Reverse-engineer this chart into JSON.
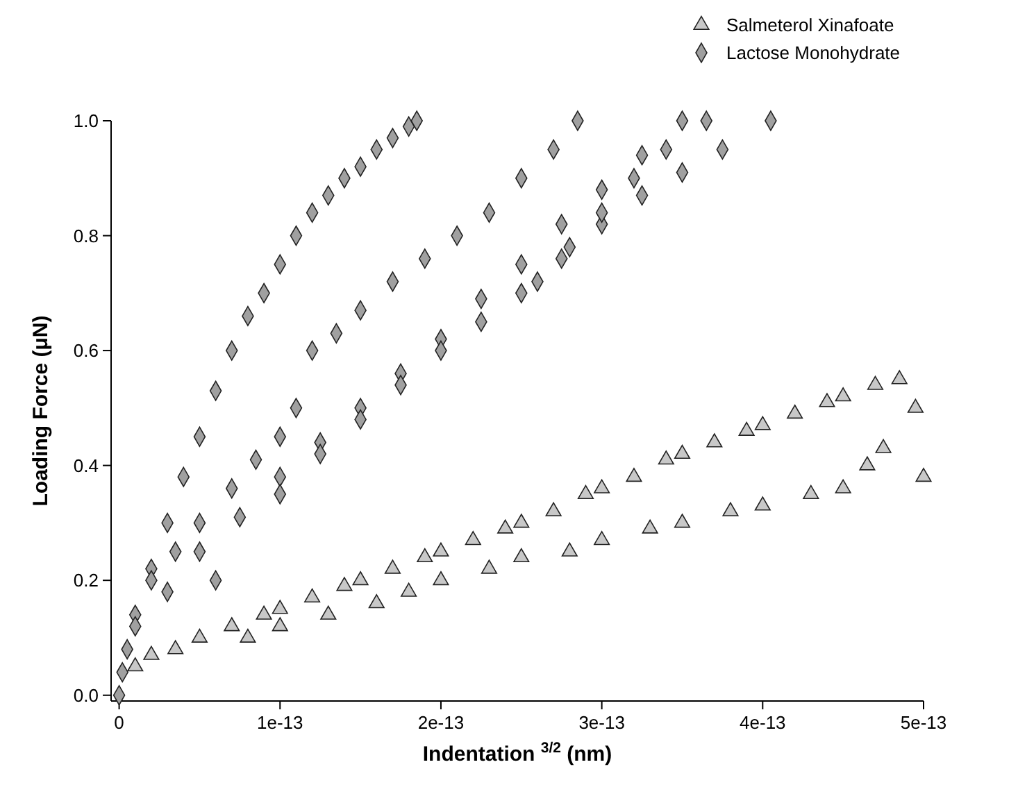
{
  "chart_data": {
    "type": "scatter",
    "xlabel": "Indentation $^{3/2}$ (nm)",
    "ylabel": "Loading Force (μN)",
    "xlim": [
      -5e-15,
      5e-13
    ],
    "ylim": [
      -0.01,
      1.0
    ],
    "xticks": [
      0,
      1e-13,
      2e-13,
      3e-13,
      4e-13,
      5e-13
    ],
    "yticks": [
      {
        "value": 0,
        "label": "0.0"
      },
      {
        "value": 0.2,
        "label": "0.2"
      },
      {
        "value": 0.4,
        "label": "0.4"
      },
      {
        "value": 0.6,
        "label": "0.6"
      },
      {
        "value": 0.8,
        "label": "0.8"
      },
      {
        "value": 1.0,
        "label": "1.0"
      }
    ],
    "grid": false,
    "legend": "top right",
    "series": [
      {
        "name": "Salmeterol Xinafoate",
        "color": "#c8c8c8",
        "marker": "triangle",
        "x": [
          1e-14,
          2e-14,
          3.5e-14,
          5e-14,
          7e-14,
          9e-14,
          1e-13,
          1.2e-13,
          1.4e-13,
          1.5e-13,
          1.7e-13,
          1.9e-13,
          2e-13,
          2.2e-13,
          2.4e-13,
          2.5e-13,
          2.7e-13,
          2.9e-13,
          3e-13,
          3.2e-13,
          3.4e-13,
          3.5e-13,
          3.7e-13,
          3.9e-13,
          4e-13,
          4.2e-13,
          4.4e-13,
          4.5e-13,
          4.7e-13,
          4.85e-13,
          8e-14,
          1e-13,
          1.3e-13,
          1.6e-13,
          1.8e-13,
          2e-13,
          2.3e-13,
          2.5e-13,
          2.8e-13,
          3e-13,
          3.3e-13,
          3.5e-13,
          3.8e-13,
          4e-13,
          4.3e-13,
          4.5e-13,
          4.65e-13,
          4.75e-13,
          5e-13,
          4.95e-13
        ],
        "values": [
          0.05,
          0.07,
          0.08,
          0.1,
          0.12,
          0.14,
          0.15,
          0.17,
          0.19,
          0.2,
          0.22,
          0.24,
          0.25,
          0.27,
          0.29,
          0.3,
          0.32,
          0.35,
          0.36,
          0.38,
          0.41,
          0.42,
          0.44,
          0.46,
          0.47,
          0.49,
          0.51,
          0.52,
          0.54,
          0.55,
          0.1,
          0.12,
          0.14,
          0.16,
          0.18,
          0.2,
          0.22,
          0.24,
          0.25,
          0.27,
          0.29,
          0.3,
          0.32,
          0.33,
          0.35,
          0.36,
          0.4,
          0.43,
          0.38,
          0.5
        ]
      },
      {
        "name": "Lactose Monohydrate",
        "color": "#a0a0a0",
        "marker": "diamond",
        "x": [
          0,
          2e-15,
          5e-15,
          1e-14,
          2e-14,
          3e-14,
          4e-14,
          5e-14,
          6e-14,
          7e-14,
          8e-14,
          9e-14,
          1e-13,
          1.1e-13,
          1.2e-13,
          1.3e-13,
          1.4e-13,
          1.5e-13,
          1.6e-13,
          1.7e-13,
          1.8e-13,
          1.85e-13,
          1e-14,
          2e-14,
          3.5e-14,
          5e-14,
          7e-14,
          8.5e-14,
          1e-13,
          1.1e-13,
          1.2e-13,
          1.35e-13,
          1.5e-13,
          1.7e-13,
          1.9e-13,
          2.1e-13,
          2.3e-13,
          2.5e-13,
          2.7e-13,
          2.85e-13,
          3e-14,
          5e-14,
          7.5e-14,
          1e-13,
          1.25e-13,
          1.5e-13,
          1.75e-13,
          2e-13,
          2.25e-13,
          2.5e-13,
          2.75e-13,
          3e-13,
          3.25e-13,
          3.5e-13,
          6e-14,
          1e-13,
          1.25e-13,
          1.5e-13,
          1.75e-13,
          2e-13,
          2.25e-13,
          2.5e-13,
          2.75e-13,
          3e-13,
          3.25e-13,
          3.5e-13,
          3.75e-13,
          4.05e-13,
          2.6e-13,
          2.8e-13,
          3e-13,
          3.2e-13,
          3.4e-13,
          3.65e-13
        ],
        "values": [
          0,
          0.04,
          0.08,
          0.14,
          0.22,
          0.3,
          0.38,
          0.45,
          0.53,
          0.6,
          0.66,
          0.7,
          0.75,
          0.8,
          0.84,
          0.87,
          0.9,
          0.92,
          0.95,
          0.97,
          0.99,
          1.0,
          0.12,
          0.2,
          0.25,
          0.3,
          0.36,
          0.41,
          0.45,
          0.5,
          0.6,
          0.63,
          0.67,
          0.72,
          0.76,
          0.8,
          0.84,
          0.9,
          0.95,
          1.0,
          0.18,
          0.25,
          0.31,
          0.38,
          0.44,
          0.5,
          0.56,
          0.62,
          0.69,
          0.75,
          0.82,
          0.88,
          0.94,
          1.0,
          0.2,
          0.35,
          0.42,
          0.48,
          0.54,
          0.6,
          0.65,
          0.7,
          0.76,
          0.82,
          0.87,
          0.91,
          0.95,
          1.0,
          0.72,
          0.78,
          0.84,
          0.9,
          0.95,
          1.0
        ]
      }
    ]
  }
}
